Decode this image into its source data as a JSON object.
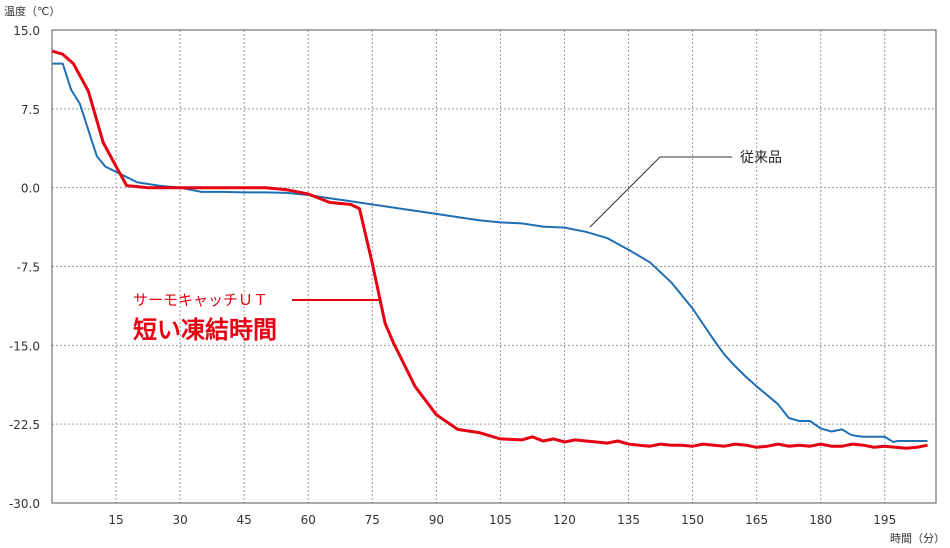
{
  "chart_data": {
    "type": "line",
    "ylabel": "温度（℃）",
    "xlabel": "時間（分）",
    "xlim": [
      0,
      207
    ],
    "ylim": [
      -30,
      15
    ],
    "xticks": [
      "15",
      "30",
      "45",
      "60",
      "75",
      "90",
      "105",
      "120",
      "135",
      "150",
      "165",
      "180",
      "195"
    ],
    "yticks": [
      "15.0",
      "7.5",
      "0.0",
      "-7.5",
      "-15.0",
      "-22.5",
      "-30.0"
    ],
    "grid": true,
    "series": [
      {
        "name": "従来品",
        "color": "#1f6fb4",
        "x": [
          0,
          2.5,
          4.5,
          6.5,
          8.5,
          10.5,
          12.5,
          15,
          20,
          25,
          30,
          35,
          40,
          45,
          50,
          55,
          60,
          65,
          70,
          75,
          80,
          85,
          90,
          95,
          100,
          105,
          110,
          115,
          120,
          125,
          130,
          135,
          140,
          145,
          150,
          155,
          157.5,
          160,
          162.5,
          165,
          170,
          172.5,
          175,
          177.5,
          180,
          182.5,
          185,
          187,
          188,
          190,
          195,
          197,
          198,
          200,
          205
        ],
        "y": [
          11.8,
          11.8,
          9.3,
          8.0,
          5.5,
          3.0,
          2.0,
          1.5,
          0.5,
          0.2,
          0.0,
          -0.4,
          -0.4,
          -0.45,
          -0.45,
          -0.5,
          -0.7,
          -1.0,
          -1.3,
          -1.6,
          -1.9,
          -2.2,
          -2.5,
          -2.8,
          -3.1,
          -3.3,
          -3.4,
          -3.7,
          -3.8,
          -4.2,
          -4.8,
          -5.9,
          -7.1,
          -9.0,
          -11.5,
          -14.5,
          -15.9,
          -17.0,
          -18.0,
          -18.9,
          -20.6,
          -21.9,
          -22.2,
          -22.2,
          -22.9,
          -23.2,
          -23.0,
          -23.5,
          -23.6,
          -23.7,
          -23.7,
          -24.2,
          -24.1,
          -24.1,
          -24.1
        ]
      },
      {
        "name": "サーモキャッチＵＴ",
        "color": "#e60012",
        "x": [
          0,
          2.5,
          5,
          8.5,
          12,
          15,
          17.5,
          22.5,
          30,
          40,
          50,
          55,
          60,
          65,
          70,
          72,
          75,
          78,
          80,
          85,
          90,
          95,
          100,
          105,
          110,
          112.5,
          115,
          117.5,
          120,
          122.5,
          125,
          127.5,
          130,
          132.5,
          135,
          137.5,
          140,
          142.5,
          145,
          147.5,
          150,
          152.5,
          155,
          157.5,
          160,
          162.5,
          165,
          167.5,
          170,
          172.5,
          175,
          177.5,
          180,
          182.5,
          185,
          187.5,
          190,
          192.5,
          195,
          197.5,
          200,
          202.5,
          205
        ],
        "y": [
          13.0,
          12.7,
          11.8,
          9.2,
          4.3,
          2.0,
          0.2,
          0.0,
          0.0,
          0.0,
          0.0,
          -0.2,
          -0.6,
          -1.4,
          -1.6,
          -2.0,
          -7.2,
          -12.9,
          -14.8,
          -18.9,
          -21.6,
          -23.0,
          -23.3,
          -23.9,
          -24.0,
          -23.7,
          -24.1,
          -23.9,
          -24.2,
          -24.0,
          -24.1,
          -24.2,
          -24.3,
          -24.1,
          -24.4,
          -24.5,
          -24.6,
          -24.4,
          -24.5,
          -24.5,
          -24.6,
          -24.4,
          -24.5,
          -24.6,
          -24.4,
          -24.5,
          -24.7,
          -24.6,
          -24.4,
          -24.6,
          -24.5,
          -24.6,
          -24.4,
          -24.6,
          -24.6,
          -24.4,
          -24.5,
          -24.7,
          -24.6,
          -24.7,
          -24.8,
          -24.7,
          -24.5
        ]
      }
    ],
    "annotations": {
      "conventional": "従来品",
      "product_name": "サーモキャッチＵＴ",
      "product_tagline": "短い凍結時間"
    }
  }
}
